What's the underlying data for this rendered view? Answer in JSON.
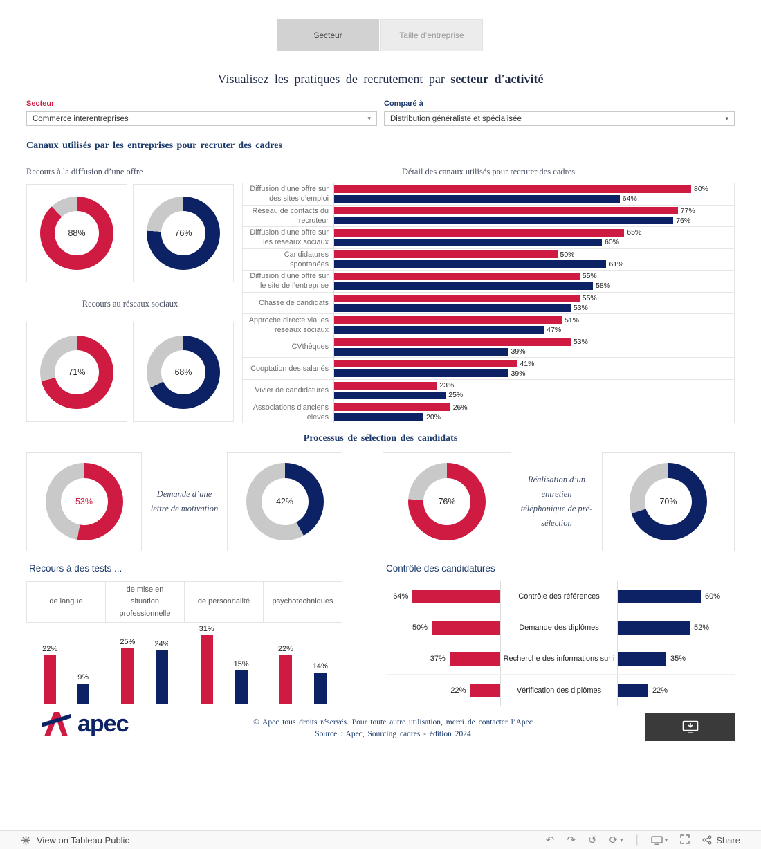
{
  "colors": {
    "red": "#cf1b41",
    "navy": "#0d2264",
    "donut_rest": "#c9c9c9",
    "header_navy": "#1b3a6b"
  },
  "tabs": {
    "sector": "Secteur",
    "size": "Taille d’entreprise"
  },
  "header": {
    "title_prefix": "Visualisez les pratiques de recrutement par",
    "title_bold": "secteur d'activité"
  },
  "filters": {
    "sector_label": "Secteur",
    "sector_value": "Commerce interentreprises",
    "compare_label": "Comparé à",
    "compare_value": "Distribution généraliste et spécialisée"
  },
  "sections": {
    "channels_title": "Canaux utilisés par les entreprises pour recruter des cadres",
    "selection_title": "Processus de sélection des candidats"
  },
  "icons": {
    "caret": "▾",
    "undo": "↶",
    "redo": "↷",
    "replay": "↺",
    "refresh": "⟳",
    "divider": "|"
  },
  "footer": {
    "brand": "apec",
    "line1": "© Apec tous droits réservés. Pour toute autre utilisation, merci de contacter l’Apec",
    "line2": "Source : Apec, Sourcing cadres - édition 2024"
  },
  "tableau_bar": {
    "view_text": "View on Tableau Public",
    "share_label": "Share"
  },
  "chart_data": [
    {
      "type": "pie",
      "title": "Recours à la diffusion d’une offre",
      "unit": "%",
      "series": [
        {
          "name": "Commerce interentreprises",
          "color": "#cf1b41",
          "value": 88
        },
        {
          "name": "Distribution généraliste et spécialisée",
          "color": "#0d2264",
          "value": 76
        }
      ]
    },
    {
      "type": "pie",
      "title": "Recours au réseaux sociaux",
      "unit": "%",
      "series": [
        {
          "name": "Commerce interentreprises",
          "color": "#cf1b41",
          "value": 71
        },
        {
          "name": "Distribution généraliste et spécialisée",
          "color": "#0d2264",
          "value": 68
        }
      ]
    },
    {
      "type": "bar",
      "orientation": "horizontal",
      "title": "Détail des canaux utilisés pour recruter des cadres",
      "unit": "%",
      "xlim": [
        0,
        100
      ],
      "legend_position": "none",
      "categories": [
        "Diffusion d’une offre sur des sites d’emploi",
        "Réseau de contacts du recruteur",
        "Diffusion d’une offre sur les réseaux sociaux",
        "Candidatures spontanées",
        "Diffusion d’une offre sur le site de l’entreprise",
        "Chasse de candidats",
        "Approche directe via les réseaux sociaux",
        "CVthèques",
        "Cooptation des salariés",
        "Vivier de candidatures",
        "Associations d’anciens élèves"
      ],
      "series": [
        {
          "name": "Commerce interentreprises",
          "color": "#cf1b41",
          "values": [
            80,
            77,
            65,
            50,
            55,
            55,
            51,
            53,
            41,
            23,
            26
          ]
        },
        {
          "name": "Distribution généraliste et spécialisée",
          "color": "#0d2264",
          "values": [
            64,
            76,
            60,
            61,
            58,
            53,
            47,
            39,
            39,
            25,
            20
          ]
        }
      ]
    },
    {
      "type": "pie",
      "title": "Demande d’une lettre de motivation",
      "unit": "%",
      "series": [
        {
          "name": "Commerce interentreprises",
          "color": "#cf1b41",
          "value": 53
        },
        {
          "name": "Distribution généraliste et spécialisée",
          "color": "#0d2264",
          "value": 42
        }
      ]
    },
    {
      "type": "pie",
      "title": "Réalisation d’un entretien téléphonique de pré-sélection",
      "unit": "%",
      "series": [
        {
          "name": "Commerce interentreprises",
          "color": "#cf1b41",
          "value": 76
        },
        {
          "name": "Distribution généraliste et spécialisée",
          "color": "#0d2264",
          "value": 70
        }
      ]
    },
    {
      "type": "bar",
      "orientation": "vertical",
      "title": "Recours à des tests ...",
      "unit": "%",
      "ylim": [
        0,
        35
      ],
      "categories": [
        "de langue",
        "de mise en situation professionnelle",
        "de personnalité",
        "psychotechniques"
      ],
      "series": [
        {
          "name": "Commerce interentreprises",
          "color": "#cf1b41",
          "values": [
            22,
            25,
            31,
            22
          ]
        },
        {
          "name": "Distribution généraliste et spécialisée",
          "color": "#0d2264",
          "values": [
            9,
            24,
            15,
            14
          ]
        }
      ]
    },
    {
      "type": "bar",
      "orientation": "horizontal-diverging",
      "title": "Contrôle des candidatures",
      "unit": "%",
      "categories": [
        "Contrôle des références",
        "Demande des diplômes",
        "Recherche des informations sur i",
        "Vérification des diplômes"
      ],
      "series": [
        {
          "name": "Commerce interentreprises",
          "color": "#cf1b41",
          "values": [
            64,
            50,
            37,
            22
          ]
        },
        {
          "name": "Distribution généraliste et spécialisée",
          "color": "#0d2264",
          "values": [
            60,
            52,
            35,
            22
          ]
        }
      ]
    }
  ]
}
